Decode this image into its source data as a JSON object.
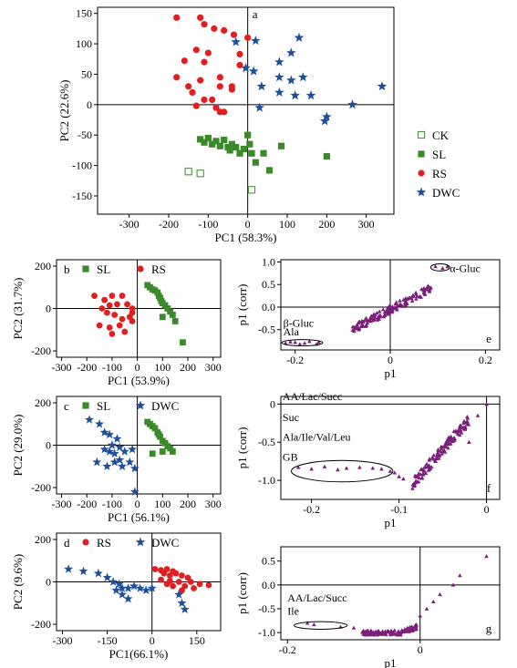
{
  "colors": {
    "CK": "#3a8a2a",
    "SL": "#3a8a2a",
    "RS": "#e02020",
    "DWC": "#1f4f9a",
    "loading": "#7a1f7a"
  },
  "chart_data": [
    {
      "id": "a",
      "type": "scatter",
      "label": "a",
      "xlabel": "PC1 (58.3%)",
      "ylabel": "PC2 (22.6%)",
      "xlim": [
        -380,
        370
      ],
      "ylim": [
        -180,
        160
      ],
      "xticks": [
        -300,
        -200,
        -100,
        0,
        100,
        200,
        300
      ],
      "yticks": [
        -150,
        -100,
        -50,
        0,
        50,
        100,
        150
      ],
      "legend": {
        "placement": "right",
        "entries": [
          {
            "name": "CK",
            "marker": "square-open",
            "color": "#3a8a2a"
          },
          {
            "name": "SL",
            "marker": "square",
            "color": "#3a8a2a"
          },
          {
            "name": "RS",
            "marker": "circle",
            "color": "#e02020"
          },
          {
            "name": "DWC",
            "marker": "star",
            "color": "#1f4f9a"
          }
        ]
      },
      "series": [
        {
          "name": "CK",
          "marker": "square-open",
          "color": "#3a8a2a",
          "points": [
            [
              -150,
              -110
            ],
            [
              -120,
              -113
            ],
            [
              10,
              -140
            ]
          ]
        },
        {
          "name": "SL",
          "marker": "square",
          "color": "#3a8a2a",
          "points": [
            [
              -120,
              -57
            ],
            [
              -110,
              -62
            ],
            [
              -100,
              -55
            ],
            [
              -90,
              -65
            ],
            [
              -80,
              -60
            ],
            [
              -70,
              -68
            ],
            [
              -60,
              -58
            ],
            [
              -50,
              -70
            ],
            [
              -45,
              -75
            ],
            [
              -40,
              -65
            ],
            [
              -30,
              -70
            ],
            [
              -20,
              -80
            ],
            [
              -10,
              -73
            ],
            [
              0,
              -50
            ],
            [
              5,
              -65
            ],
            [
              10,
              -80
            ],
            [
              20,
              -95
            ],
            [
              40,
              -80
            ],
            [
              55,
              -108
            ],
            [
              85,
              -68
            ],
            [
              200,
              -85
            ]
          ]
        },
        {
          "name": "RS",
          "marker": "circle",
          "color": "#e02020",
          "points": [
            [
              -180,
              143
            ],
            [
              -120,
              143
            ],
            [
              -110,
              132
            ],
            [
              -85,
              125
            ],
            [
              -60,
              122
            ],
            [
              -35,
              115
            ],
            [
              0,
              110
            ],
            [
              -130,
              90
            ],
            [
              -100,
              85
            ],
            [
              -20,
              83
            ],
            [
              -160,
              72
            ],
            [
              -110,
              70
            ],
            [
              -20,
              65
            ],
            [
              -180,
              45
            ],
            [
              -70,
              45
            ],
            [
              -120,
              40
            ],
            [
              -150,
              30
            ],
            [
              -40,
              30
            ],
            [
              -70,
              30
            ],
            [
              -40,
              25
            ],
            [
              -140,
              20
            ],
            [
              -110,
              8
            ],
            [
              -90,
              8
            ],
            [
              -130,
              -2
            ],
            [
              -80,
              -5
            ],
            [
              -70,
              -12
            ],
            [
              -60,
              -12
            ]
          ]
        },
        {
          "name": "DWC",
          "marker": "star",
          "color": "#1f4f9a",
          "points": [
            [
              20,
              105
            ],
            [
              -30,
              103
            ],
            [
              130,
              110
            ],
            [
              110,
              85
            ],
            [
              80,
              70
            ],
            [
              -5,
              60
            ],
            [
              15,
              55
            ],
            [
              80,
              45
            ],
            [
              110,
              40
            ],
            [
              140,
              45
            ],
            [
              35,
              30
            ],
            [
              80,
              20
            ],
            [
              120,
              15
            ],
            [
              160,
              15
            ],
            [
              340,
              30
            ],
            [
              265,
              0
            ],
            [
              30,
              -5
            ],
            [
              200,
              -20
            ],
            [
              195,
              -27
            ]
          ]
        }
      ]
    },
    {
      "id": "b",
      "type": "scatter",
      "label": "b",
      "xlabel": "PC1 (53.9%)",
      "ylabel": "PC2 (31.7%)",
      "xlim": [
        -320,
        330
      ],
      "ylim": [
        -230,
        230
      ],
      "xticks": [
        -300,
        -200,
        -100,
        0,
        100,
        200,
        300
      ],
      "yticks": [
        -200,
        0,
        200
      ],
      "legend": {
        "placement": "top",
        "entries": [
          {
            "name": "SL",
            "marker": "square",
            "color": "#3a8a2a"
          },
          {
            "name": "RS",
            "marker": "circle",
            "color": "#e02020"
          }
        ]
      },
      "series": [
        {
          "name": "SL",
          "marker": "square",
          "color": "#3a8a2a",
          "points": [
            [
              40,
              110
            ],
            [
              50,
              100
            ],
            [
              60,
              90
            ],
            [
              70,
              85
            ],
            [
              80,
              75
            ],
            [
              85,
              60
            ],
            [
              90,
              50
            ],
            [
              95,
              35
            ],
            [
              100,
              25
            ],
            [
              110,
              15
            ],
            [
              120,
              0
            ],
            [
              130,
              -15
            ],
            [
              140,
              -30
            ],
            [
              150,
              -60
            ],
            [
              100,
              -40
            ],
            [
              180,
              -160
            ]
          ]
        },
        {
          "name": "RS",
          "marker": "circle",
          "color": "#e02020",
          "points": [
            [
              -170,
              60
            ],
            [
              -130,
              40
            ],
            [
              -100,
              60
            ],
            [
              -60,
              60
            ],
            [
              -140,
              0
            ],
            [
              -110,
              15
            ],
            [
              -80,
              20
            ],
            [
              -40,
              20
            ],
            [
              -20,
              0
            ],
            [
              -120,
              -20
            ],
            [
              -90,
              -30
            ],
            [
              -60,
              -50
            ],
            [
              -30,
              -40
            ],
            [
              -150,
              -80
            ],
            [
              -110,
              -90
            ],
            [
              -70,
              -80
            ],
            [
              -20,
              -60
            ],
            [
              -100,
              -120
            ],
            [
              -50,
              -110
            ],
            [
              -20,
              -20
            ]
          ]
        }
      ]
    },
    {
      "id": "c",
      "type": "scatter",
      "label": "c",
      "xlabel": "PC1 (56.1%)",
      "ylabel": "PC2 (29.0%)",
      "xlim": [
        -320,
        330
      ],
      "ylim": [
        -230,
        230
      ],
      "xticks": [
        -300,
        -200,
        -100,
        0,
        100,
        200,
        300
      ],
      "yticks": [
        -200,
        0,
        200
      ],
      "legend": {
        "placement": "top",
        "entries": [
          {
            "name": "SL",
            "marker": "square",
            "color": "#3a8a2a"
          },
          {
            "name": "DWC",
            "marker": "star",
            "color": "#1f4f9a"
          }
        ]
      },
      "series": [
        {
          "name": "SL",
          "marker": "square",
          "color": "#3a8a2a",
          "points": [
            [
              40,
              110
            ],
            [
              50,
              100
            ],
            [
              60,
              90
            ],
            [
              70,
              80
            ],
            [
              80,
              60
            ],
            [
              85,
              50
            ],
            [
              90,
              40
            ],
            [
              100,
              20
            ],
            [
              110,
              10
            ],
            [
              120,
              -5
            ],
            [
              130,
              -15
            ],
            [
              140,
              -30
            ],
            [
              60,
              -40
            ],
            [
              100,
              -30
            ]
          ]
        },
        {
          "name": "DWC",
          "marker": "star",
          "color": "#1f4f9a",
          "points": [
            [
              -190,
              120
            ],
            [
              -150,
              100
            ],
            [
              -130,
              60
            ],
            [
              -110,
              50
            ],
            [
              -80,
              30
            ],
            [
              -100,
              0
            ],
            [
              -130,
              -20
            ],
            [
              -110,
              -30
            ],
            [
              -90,
              -40
            ],
            [
              -70,
              -10
            ],
            [
              -50,
              -30
            ],
            [
              -160,
              -80
            ],
            [
              -120,
              -100
            ],
            [
              -90,
              -80
            ],
            [
              -60,
              -100
            ],
            [
              -30,
              -80
            ],
            [
              -20,
              -20
            ],
            [
              -10,
              -110
            ],
            [
              -10,
              -220
            ],
            [
              -70,
              -70
            ]
          ]
        }
      ]
    },
    {
      "id": "d",
      "type": "scatter",
      "label": "d",
      "xlabel": "PC1(66.1%)",
      "ylabel": "PC2 (9.6%)",
      "xlim": [
        -320,
        230
      ],
      "ylim": [
        -230,
        230
      ],
      "xticks": [
        -300,
        -150,
        0,
        150
      ],
      "yticks": [
        -200,
        0,
        200
      ],
      "legend": {
        "placement": "top",
        "entries": [
          {
            "name": "RS",
            "marker": "circle",
            "color": "#e02020"
          },
          {
            "name": "DWC",
            "marker": "star",
            "color": "#1f4f9a"
          }
        ]
      },
      "series": [
        {
          "name": "RS",
          "marker": "circle",
          "color": "#e02020",
          "points": [
            [
              10,
              60
            ],
            [
              30,
              55
            ],
            [
              50,
              60
            ],
            [
              70,
              50
            ],
            [
              40,
              40
            ],
            [
              60,
              30
            ],
            [
              80,
              40
            ],
            [
              100,
              30
            ],
            [
              120,
              20
            ],
            [
              30,
              10
            ],
            [
              60,
              5
            ],
            [
              90,
              0
            ],
            [
              130,
              0
            ],
            [
              160,
              -10
            ],
            [
              190,
              -15
            ],
            [
              110,
              -20
            ],
            [
              70,
              -20
            ],
            [
              50,
              -10
            ],
            [
              140,
              -30
            ],
            [
              100,
              -40
            ]
          ]
        },
        {
          "name": "DWC",
          "marker": "star",
          "color": "#1f4f9a",
          "points": [
            [
              -280,
              60
            ],
            [
              -230,
              50
            ],
            [
              -180,
              40
            ],
            [
              -150,
              20
            ],
            [
              -130,
              0
            ],
            [
              -110,
              -10
            ],
            [
              -100,
              -30
            ],
            [
              -80,
              -30
            ],
            [
              -60,
              -20
            ],
            [
              -40,
              -30
            ],
            [
              -100,
              -60
            ],
            [
              -80,
              -80
            ],
            [
              -20,
              -40
            ],
            [
              0,
              -30
            ],
            [
              90,
              -60
            ],
            [
              100,
              -100
            ],
            [
              110,
              -130
            ],
            [
              -120,
              -40
            ]
          ]
        }
      ]
    },
    {
      "id": "e",
      "type": "scatter",
      "label": "e",
      "xlabel": "p1",
      "ylabel": "p1 (corr)",
      "xlim": [
        -0.23,
        0.23
      ],
      "ylim": [
        -0.95,
        1.05
      ],
      "xticks": [
        -0.2,
        0,
        0.2
      ],
      "yticks": [
        -0.5,
        0,
        0.5,
        1
      ],
      "ytick_labels": [
        "-0.5",
        "0.0",
        "0.5",
        "1.0"
      ],
      "annotations": [
        "α-Gluc",
        "β-Gluc",
        "Ala"
      ],
      "ellipses": [
        {
          "cx": 0.105,
          "cy": 0.88,
          "rx": 0.02,
          "ry": 0.08
        },
        {
          "cx": -0.185,
          "cy": -0.79,
          "rx": 0.043,
          "ry": 0.07
        }
      ],
      "series": [
        {
          "name": "",
          "marker": "triangle",
          "color": "#7a1f7a",
          "generator": "e"
        }
      ]
    },
    {
      "id": "f",
      "type": "scatter",
      "label": "f",
      "xlabel": "p1",
      "ylabel": "p1 (corr)",
      "xlim": [
        -0.235,
        0.015
      ],
      "ylim": [
        -1.25,
        0.1
      ],
      "xticks": [
        -0.2,
        -0.1,
        0
      ],
      "yticks": [
        -1,
        -0.5,
        0
      ],
      "ytick_labels": [
        "-1.0",
        "-0.5",
        "0"
      ],
      "annotations": [
        "AA/Lac/Succ",
        "Suc",
        "Ala/Ile/Val/Leu",
        "GB"
      ],
      "ellipses": [
        {
          "cx": -0.165,
          "cy": -0.88,
          "rx": 0.058,
          "ry": 0.14
        }
      ],
      "series": [
        {
          "name": "",
          "marker": "triangle",
          "color": "#7a1f7a",
          "generator": "f"
        }
      ]
    },
    {
      "id": "g",
      "type": "scatter",
      "label": "g",
      "xlabel": "p1",
      "ylabel": "p1 (corr)",
      "xlim": [
        -0.21,
        0.12
      ],
      "ylim": [
        -1.15,
        0.8
      ],
      "xticks": [
        -0.2,
        0
      ],
      "yticks": [
        -1,
        -0.5,
        0,
        0.5
      ],
      "ytick_labels": [
        "-1.0",
        "-0.5",
        "0.0",
        "0.5"
      ],
      "annotations": [
        "AA/Lac/Succ",
        "Ile"
      ],
      "ellipses": [
        {
          "cx": -0.15,
          "cy": -0.85,
          "rx": 0.04,
          "ry": 0.08
        }
      ],
      "series": [
        {
          "name": "",
          "marker": "triangle",
          "color": "#7a1f7a",
          "generator": "g"
        }
      ]
    }
  ]
}
